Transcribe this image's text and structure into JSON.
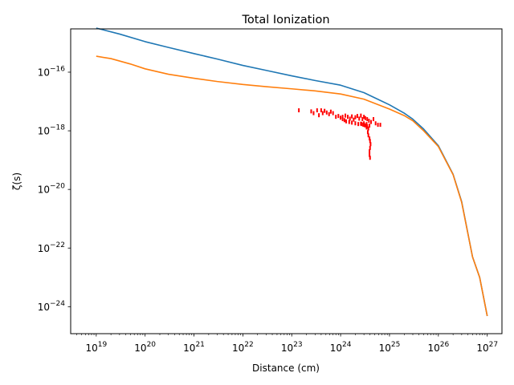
{
  "chart_data": {
    "type": "line",
    "title": "Total Ionization",
    "xlabel": "Distance (cm)",
    "ylabel": "ζ(s)",
    "xscale": "log",
    "yscale": "log",
    "xlim": [
      3e+18,
      2e+27
    ],
    "ylim": [
      1.2e-25,
      3e-15
    ],
    "x_ticks": [
      {
        "value": 1e+19,
        "base": "10",
        "exp": "19"
      },
      {
        "value": 1e+20,
        "base": "10",
        "exp": "20"
      },
      {
        "value": 1e+21,
        "base": "10",
        "exp": "21"
      },
      {
        "value": 1e+22,
        "base": "10",
        "exp": "22"
      },
      {
        "value": 1e+23,
        "base": "10",
        "exp": "23"
      },
      {
        "value": 1e+24,
        "base": "10",
        "exp": "24"
      },
      {
        "value": 1e+25,
        "base": "10",
        "exp": "25"
      },
      {
        "value": 1e+26,
        "base": "10",
        "exp": "26"
      },
      {
        "value": 1e+27,
        "base": "10",
        "exp": "27"
      }
    ],
    "y_ticks": [
      {
        "value": 1e-16,
        "base": "10",
        "exp": "−16"
      },
      {
        "value": 1e-18,
        "base": "10",
        "exp": "−18"
      },
      {
        "value": 1e-20,
        "base": "10",
        "exp": "−20"
      },
      {
        "value": 1e-22,
        "base": "10",
        "exp": "−22"
      },
      {
        "value": 1e-24,
        "base": "10",
        "exp": "−24"
      }
    ],
    "grid": false,
    "legend": "none",
    "series": [
      {
        "color": "#1f77b4",
        "kind": "line",
        "x": [
          1e+19,
          3e+19,
          1e+20,
          3e+20,
          1e+21,
          3e+21,
          1e+22,
          3e+22,
          1e+23,
          3e+23,
          1e+24,
          3e+24,
          1e+25,
          2e+25,
          3e+25,
          5e+25,
          1e+26,
          2e+26,
          3e+26,
          5e+26,
          7e+26,
          1e+27
        ],
        "y": [
          3.2e-15,
          2e-15,
          1.1e-15,
          7e-16,
          4.3e-16,
          2.8e-16,
          1.7e-16,
          1.15e-16,
          7.5e-17,
          5.2e-17,
          3.6e-17,
          2e-17,
          7.7e-18,
          4e-18,
          2.5e-18,
          1.15e-18,
          3.1e-19,
          3.3e-20,
          3.8e-21,
          5e-23,
          1e-23,
          4.8e-25
        ]
      },
      {
        "color": "#ff7f0e",
        "kind": "line",
        "x": [
          1e+19,
          2e+19,
          5e+19,
          1e+20,
          3e+20,
          1e+21,
          3e+21,
          1e+22,
          3e+22,
          1e+23,
          3e+23,
          1e+24,
          3e+24,
          1e+25,
          2e+25,
          3e+25,
          5e+25,
          1e+26,
          2e+26,
          3e+26,
          5e+26,
          7e+26,
          1e+27
        ],
        "y": [
          3.5e-16,
          2.9e-16,
          1.9e-16,
          1.3e-16,
          8.5e-17,
          6.2e-17,
          4.8e-17,
          3.8e-17,
          3.2e-17,
          2.7e-17,
          2.3e-17,
          1.8e-17,
          1.2e-17,
          5.5e-18,
          3.3e-18,
          2.2e-18,
          1e-18,
          2.9e-19,
          3.2e-20,
          3.6e-21,
          5e-23,
          1e-23,
          4.8e-25
        ]
      },
      {
        "color": "#ff0000",
        "kind": "scatter",
        "x": [
          1.4e+23,
          2.5e+23,
          2.8e+23,
          3.3e+23,
          3.6e+23,
          4e+23,
          4.3e+23,
          4.7e+23,
          5.2e+23,
          5.8e+23,
          6.3e+23,
          7e+23,
          8e+23,
          9e+23,
          1e+24,
          1.1e+24,
          1.25e+24,
          1.4e+24,
          1.55e+24,
          1.7e+24,
          1.85e+24,
          2e+24,
          2.2e+24,
          2.4e+24,
          2.6e+24,
          2.8e+24,
          3e+24,
          3.2e+24,
          3.5e+24,
          3.8e+24,
          4.2e+24,
          4.7e+24,
          5.2e+24,
          5.8e+24,
          6.5e+24,
          3.9e+24,
          3.7e+24,
          3.6e+24,
          3.7e+24,
          3.9e+24,
          4e+24,
          4.1e+24,
          4e+24,
          3.9e+24,
          3.9e+24,
          4e+24,
          3.4e+24,
          3e+24,
          2.6e+24,
          2.3e+24,
          2e+24,
          1.7e+24,
          1.5e+24,
          1.3e+24,
          1.2e+24,
          1.1e+24,
          2.9e+24,
          3.1e+24,
          3.3e+24,
          3.5e+24,
          2.7e+24,
          3.4e+24
        ],
        "y": [
          5e-18,
          4.6e-18,
          4e-18,
          5e-18,
          3.4e-18,
          5e-18,
          4e-18,
          4.8e-18,
          4.2e-18,
          3.7e-18,
          4.5e-18,
          4e-18,
          3e-18,
          3.2e-18,
          2.8e-18,
          3e-18,
          3.3e-18,
          3e-18,
          2.6e-18,
          3.1e-18,
          2.4e-18,
          2.9e-18,
          3.2e-18,
          2.6e-18,
          3.3e-18,
          2.5e-18,
          3e-18,
          2.7e-18,
          2.5e-18,
          2.2e-18,
          2e-18,
          2.5e-18,
          1.8e-18,
          1.6e-18,
          1.6e-18,
          1.5e-18,
          1.2e-18,
          9e-19,
          7e-19,
          5.5e-19,
          4.5e-19,
          3.5e-19,
          2.6e-19,
          2e-19,
          1.5e-19,
          1.2e-19,
          1.7e-18,
          1.8e-18,
          1.75e-18,
          1.7e-18,
          1.8e-18,
          1.9e-18,
          2e-18,
          2.1e-18,
          2.3e-18,
          2.5e-18,
          1.6e-18,
          1.55e-18,
          1.5e-18,
          1.45e-18,
          1.7e-18,
          1.3e-18
        ]
      }
    ]
  }
}
